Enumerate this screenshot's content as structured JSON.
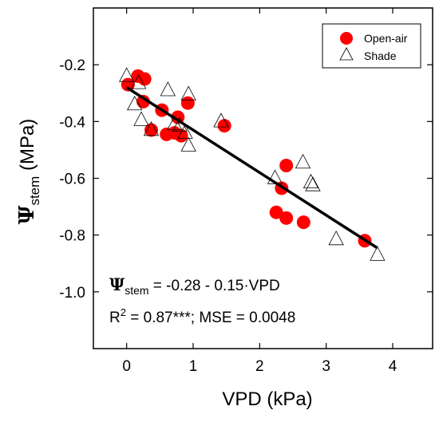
{
  "chart_data": {
    "type": "scatter",
    "xlabel": "VPD (kPa)",
    "ylabel": {
      "main": "Ψ",
      "sub": "stem",
      "rest": " (MPa)"
    },
    "xlim": [
      -0.5,
      4.6
    ],
    "ylim": [
      -1.2,
      0.0
    ],
    "xticks": [
      0,
      1,
      2,
      3,
      4
    ],
    "yticks": [
      -1.0,
      -0.8,
      -0.6,
      -0.4,
      -0.2
    ],
    "xtick_labels": [
      "0",
      "1",
      "2",
      "3",
      "4"
    ],
    "ytick_labels": [
      "-1.0",
      "-0.8",
      "-0.6",
      "-0.4",
      "-0.2"
    ],
    "grid": false,
    "legend_position": "top-right",
    "series": [
      {
        "name": "Open-air",
        "marker": "circle",
        "color": "#ff0000",
        "points": [
          [
            0.02,
            -0.27
          ],
          [
            0.17,
            -0.24
          ],
          [
            0.27,
            -0.25
          ],
          [
            0.25,
            -0.33
          ],
          [
            0.37,
            -0.43
          ],
          [
            0.53,
            -0.36
          ],
          [
            0.6,
            -0.445
          ],
          [
            0.72,
            -0.44
          ],
          [
            0.77,
            -0.385
          ],
          [
            0.82,
            -0.45
          ],
          [
            0.92,
            -0.335
          ],
          [
            1.47,
            -0.415
          ],
          [
            2.25,
            -0.72
          ],
          [
            2.33,
            -0.635
          ],
          [
            2.4,
            -0.74
          ],
          [
            2.4,
            -0.555
          ],
          [
            2.66,
            -0.755
          ],
          [
            3.58,
            -0.82
          ]
        ]
      },
      {
        "name": "Shade",
        "marker": "triangle",
        "color": "#ffffff",
        "points": [
          [
            0.0,
            -0.24
          ],
          [
            0.18,
            -0.265
          ],
          [
            0.12,
            -0.34
          ],
          [
            0.22,
            -0.395
          ],
          [
            0.37,
            -0.43
          ],
          [
            0.62,
            -0.29
          ],
          [
            0.72,
            -0.41
          ],
          [
            0.8,
            -0.415
          ],
          [
            0.88,
            -0.44
          ],
          [
            0.93,
            -0.305
          ],
          [
            0.93,
            -0.485
          ],
          [
            1.42,
            -0.4
          ],
          [
            2.23,
            -0.6
          ],
          [
            2.65,
            -0.545
          ],
          [
            2.77,
            -0.615
          ],
          [
            2.8,
            -0.625
          ],
          [
            3.15,
            -0.815
          ],
          [
            3.77,
            -0.87
          ]
        ]
      }
    ],
    "regression": {
      "x0": 0.0,
      "x1": 3.77,
      "intercept": -0.28,
      "slope": -0.15
    },
    "annotations": {
      "equation": {
        "psi": "Ψ",
        "sub": "stem",
        "rest": " = -0.28 - 0.15·VPD"
      },
      "fit": {
        "r": "R",
        "sup": "2",
        "rest": " = 0.87***; MSE = 0.0048"
      }
    }
  }
}
